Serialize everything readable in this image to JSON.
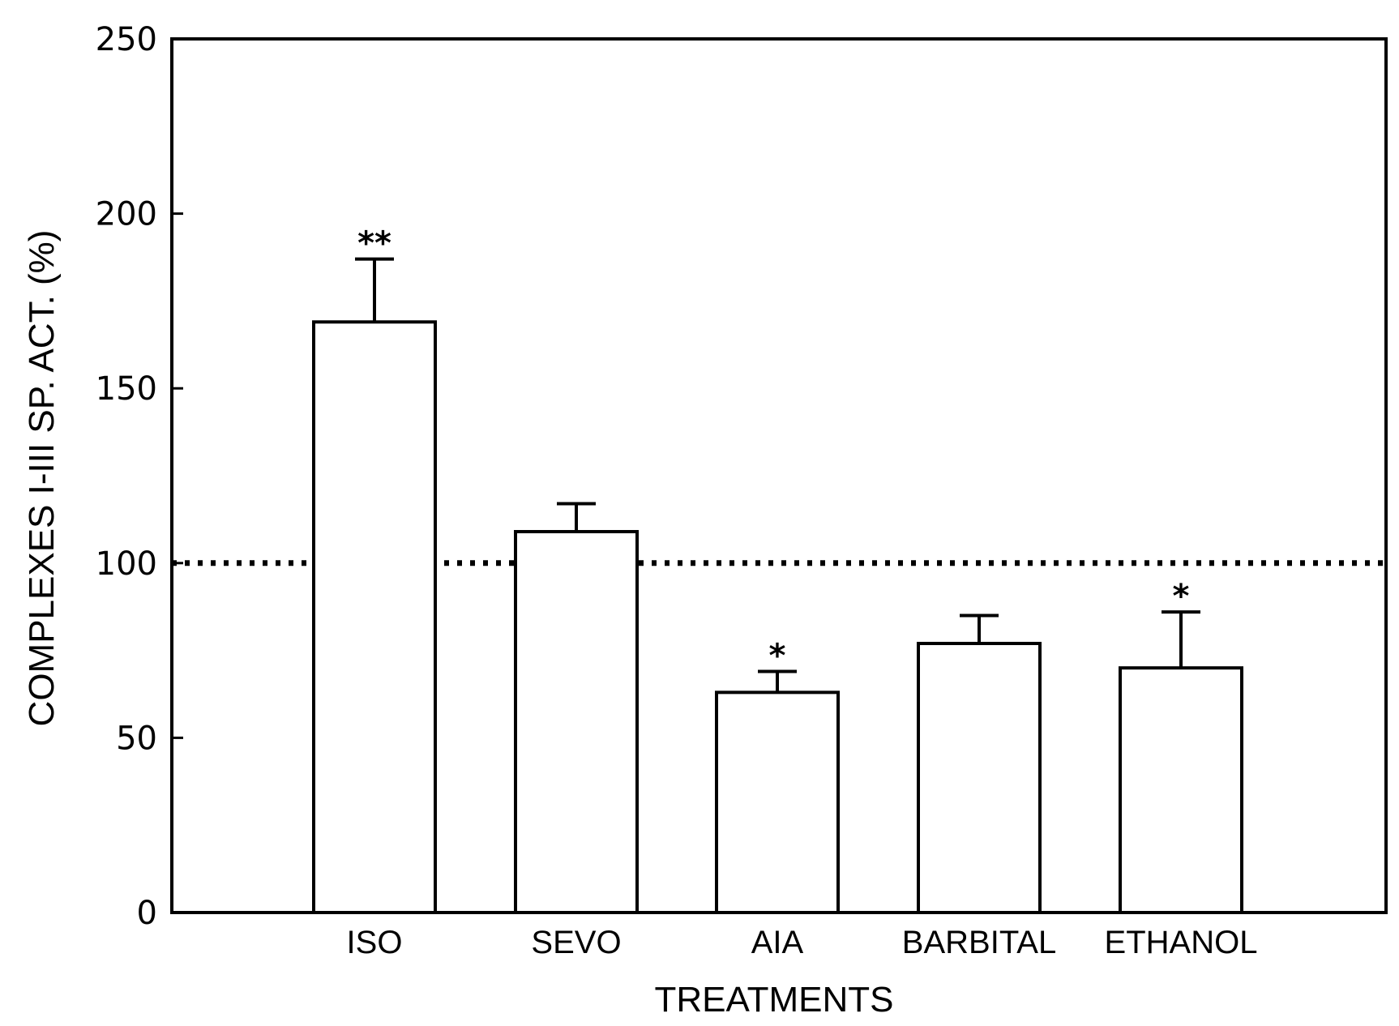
{
  "chart_data": {
    "type": "bar",
    "title": "",
    "xlabel": "TREATMENTS",
    "ylabel": "COMPLEXES I-III SP. ACT. (%)",
    "ylim": [
      0,
      250
    ],
    "yticks": [
      0,
      50,
      100,
      150,
      200,
      250
    ],
    "categories": [
      "ISO",
      "SEVO",
      "AIA",
      "BARBITAL",
      "ETHANOL"
    ],
    "values": [
      169,
      109,
      63,
      77,
      70
    ],
    "errors": [
      18,
      8,
      6,
      8,
      16
    ],
    "significance": [
      "**",
      "",
      "*",
      "",
      "*"
    ],
    "reference_line": {
      "value": 100,
      "style": "dotted"
    },
    "grid": false,
    "legend": "none"
  }
}
